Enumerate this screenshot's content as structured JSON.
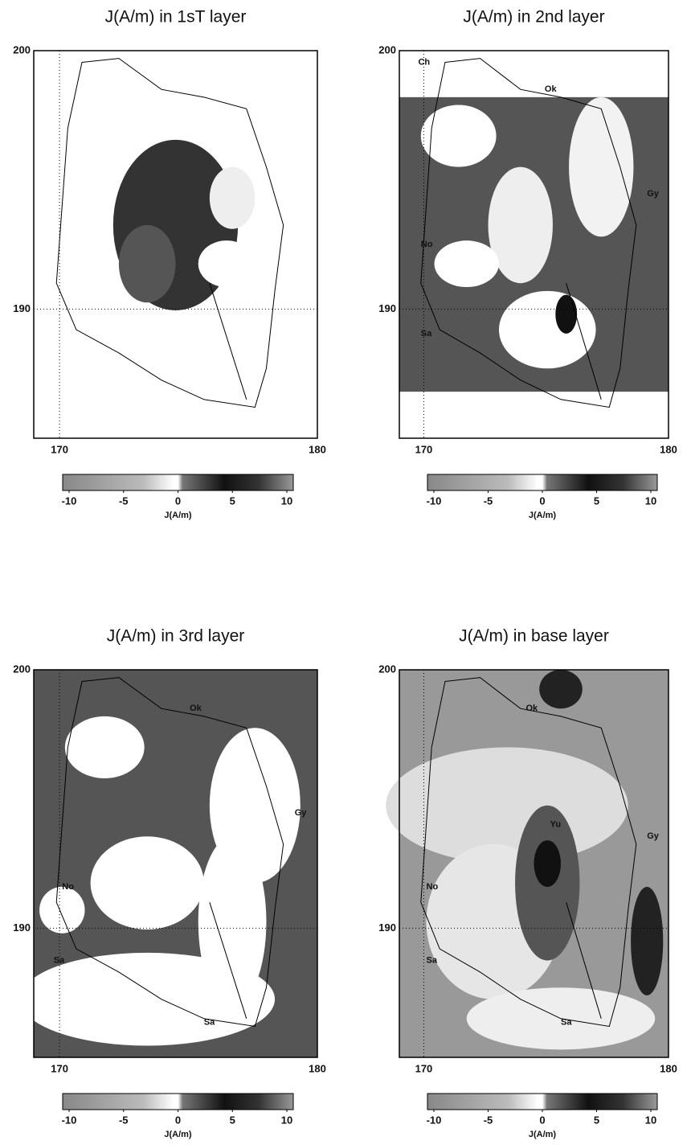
{
  "chart_data": [
    {
      "type": "map",
      "title": "J(A/m) in 1sT layer",
      "xlim": [
        169,
        180
      ],
      "ylim": [
        185,
        200
      ],
      "xticks": [
        170,
        180
      ],
      "yticks": [
        190,
        200
      ],
      "grid": true,
      "colorbar_ticks": [
        -10,
        -5,
        0,
        5,
        10
      ],
      "colorbar_label": "J(A/m)",
      "annotations": []
    },
    {
      "type": "map",
      "title": "J(A/m) in 2nd layer",
      "xlim": [
        169,
        180
      ],
      "ylim": [
        185,
        200
      ],
      "xticks": [
        170,
        180
      ],
      "yticks": [
        190,
        200
      ],
      "grid": true,
      "colorbar_ticks": [
        -10,
        -5,
        0,
        5,
        10
      ],
      "colorbar_label": "J(A/m)",
      "annotations": [
        "Ch",
        "Ok",
        "Gy",
        "No",
        "Sa"
      ]
    },
    {
      "type": "map",
      "title": "J(A/m) in 3rd layer",
      "xlim": [
        169,
        180
      ],
      "ylim": [
        185,
        200
      ],
      "xticks": [
        170,
        180
      ],
      "yticks": [
        190,
        200
      ],
      "grid": true,
      "colorbar_ticks": [
        -10,
        -5,
        0,
        5,
        10
      ],
      "colorbar_label": "J(A/m)",
      "annotations": [
        "Ok",
        "Gy",
        "No",
        "Sa",
        "Sa"
      ]
    },
    {
      "type": "map",
      "title": "J(A/m) in base layer",
      "xlim": [
        169,
        180
      ],
      "ylim": [
        185,
        200
      ],
      "xticks": [
        170,
        180
      ],
      "yticks": [
        190,
        200
      ],
      "grid": true,
      "colorbar_ticks": [
        -10,
        -5,
        0,
        5,
        10
      ],
      "colorbar_label": "J(A/m)",
      "annotations": [
        "Ok",
        "Yu",
        "Gy",
        "No",
        "Sa",
        "Sa"
      ]
    }
  ]
}
